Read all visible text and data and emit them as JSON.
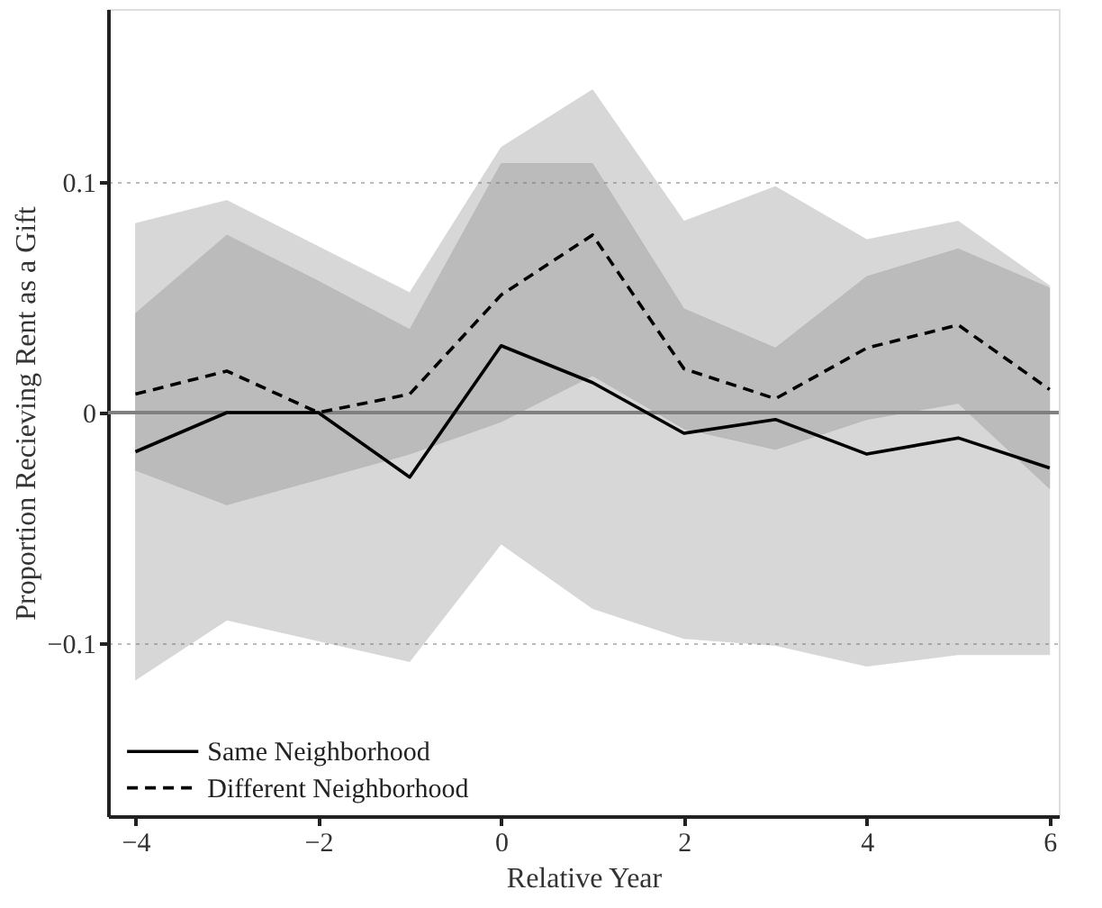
{
  "chart_data": {
    "type": "line",
    "xlabel": "Relative Year",
    "ylabel": "Proportion Recieving Rent as a Gift",
    "x": [
      -4,
      -3,
      -2,
      -1,
      0,
      1,
      2,
      3,
      4,
      5,
      6
    ],
    "xlim": [
      -4.3,
      6.1
    ],
    "xticks": [
      -4,
      -2,
      0,
      2,
      4,
      6
    ],
    "ylim": [
      -0.175,
      0.175
    ],
    "yticks": [
      -0.1,
      0,
      0.1
    ],
    "grid": "y",
    "legend": "bottom left",
    "marker": "none",
    "ref_lines": [
      {
        "axis": "y",
        "value": 0,
        "color": "#808080",
        "line_style": "solid"
      }
    ],
    "series": [
      {
        "name": "Same Neighborhood",
        "color": "#000000",
        "line_style": "solid",
        "values": [
          -0.017,
          0,
          0,
          -0.028,
          0.029,
          0.013,
          -0.009,
          -0.003,
          -0.018,
          -0.011,
          -0.024
        ],
        "lower": [
          -0.116,
          -0.09,
          -0.099,
          -0.108,
          -0.057,
          -0.085,
          -0.098,
          -0.101,
          -0.11,
          -0.105,
          -0.105
        ],
        "upper": [
          0.082,
          0.092,
          0.072,
          0.052,
          0.115,
          0.14,
          0.083,
          0.098,
          0.075,
          0.083,
          0.055
        ]
      },
      {
        "name": "Different Neighborhood",
        "color": "#000000",
        "line_style": "dashed",
        "values": [
          0.008,
          0.018,
          0,
          0.008,
          0.051,
          0.077,
          0.019,
          0.006,
          0.028,
          0.038,
          0.01
        ],
        "lower": [
          -0.025,
          -0.04,
          -0.029,
          -0.018,
          -0.004,
          0.016,
          -0.007,
          -0.016,
          -0.003,
          0.004,
          -0.033
        ],
        "upper": [
          0.043,
          0.077,
          0.057,
          0.036,
          0.108,
          0.108,
          0.045,
          0.028,
          0.059,
          0.071,
          0.054
        ]
      }
    ]
  }
}
